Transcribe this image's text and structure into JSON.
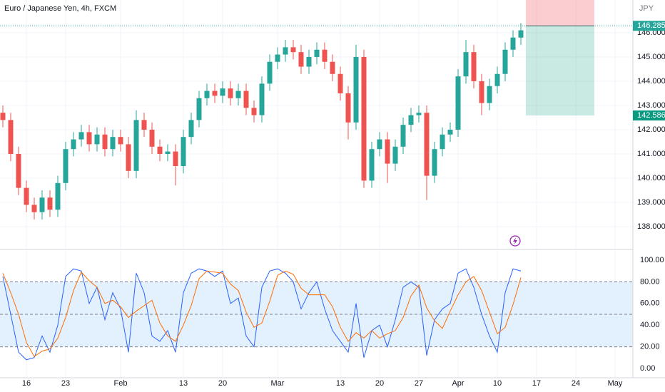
{
  "chart_data": {
    "type": "candlestick",
    "title": "Euro / Japanese Yen, 4h, FXCM",
    "currency": "JPY",
    "categories": [
      null,
      null,
      null,
      "16",
      null,
      null,
      null,
      null,
      "23",
      null,
      null,
      null,
      null,
      null,
      null,
      "Feb",
      null,
      null,
      null,
      null,
      null,
      null,
      null,
      "13",
      null,
      null,
      null,
      null,
      "20",
      null,
      null,
      null,
      null,
      null,
      null,
      "Mar",
      null,
      null,
      null,
      null,
      null,
      null,
      null,
      "13",
      null,
      null,
      null,
      null,
      "20",
      null,
      null,
      null,
      null,
      "27",
      null,
      null,
      null,
      null,
      "Apr",
      null,
      null,
      null,
      null,
      "10",
      null,
      null,
      null,
      null,
      "17",
      null,
      null,
      null,
      null,
      "24",
      null,
      null,
      null,
      null,
      "May",
      null
    ],
    "open": [
      142.7,
      142.4,
      141.0,
      139.6,
      138.9,
      138.6,
      139.2,
      138.7,
      139.8,
      141.2,
      141.6,
      141.9,
      141.4,
      141.8,
      141.2,
      141.7,
      141.4,
      140.3,
      142.4,
      142.0,
      141.3,
      141.0,
      141.1,
      140.5,
      141.7,
      142.4,
      143.3,
      143.6,
      143.4,
      143.7,
      143.3,
      143.6,
      142.9,
      142.6,
      143.9,
      144.8,
      145.1,
      145.4,
      145.2,
      144.6,
      145.0,
      145.3,
      144.8,
      144.3,
      143.5,
      142.3,
      145.0,
      139.9,
      141.2,
      141.6,
      140.6,
      141.3,
      142.2,
      142.6,
      142.7,
      140.1,
      141.2,
      141.8,
      142.0,
      144.2,
      145.2,
      144.0,
      143.1,
      143.8,
      144.3,
      145.3,
      145.8,
      null,
      null,
      null,
      null,
      null,
      null,
      null,
      null,
      null,
      null,
      null,
      null,
      null
    ],
    "high": [
      143.0,
      142.7,
      141.3,
      139.9,
      139.2,
      139.5,
      139.5,
      140.1,
      141.5,
      141.9,
      142.2,
      142.2,
      142.1,
      142.1,
      142.0,
      142.0,
      141.7,
      142.8,
      142.7,
      142.3,
      141.6,
      141.4,
      141.4,
      142.0,
      142.7,
      143.6,
      143.9,
      143.9,
      144.0,
      144.0,
      143.9,
      143.9,
      143.2,
      144.2,
      145.1,
      145.4,
      145.7,
      145.7,
      145.5,
      145.3,
      145.6,
      145.6,
      145.1,
      144.6,
      143.8,
      145.5,
      145.3,
      141.5,
      141.9,
      141.9,
      141.6,
      142.5,
      142.9,
      143.0,
      143.0,
      141.5,
      142.1,
      142.3,
      144.5,
      145.7,
      145.5,
      144.3,
      144.1,
      144.6,
      145.6,
      146.1,
      146.4,
      null,
      null,
      null,
      null,
      null,
      null,
      null,
      null,
      null,
      null,
      null,
      null,
      null
    ],
    "low": [
      142.1,
      140.7,
      139.3,
      138.6,
      138.3,
      138.3,
      138.4,
      138.4,
      139.5,
      140.9,
      141.3,
      141.1,
      141.1,
      140.9,
      140.9,
      141.1,
      140.0,
      140.0,
      141.7,
      141.0,
      140.7,
      140.7,
      139.7,
      140.2,
      141.4,
      142.1,
      143.0,
      143.1,
      143.1,
      143.0,
      143.0,
      142.6,
      142.3,
      142.3,
      143.6,
      144.5,
      144.8,
      144.9,
      144.3,
      144.3,
      144.7,
      144.5,
      144.0,
      143.2,
      141.6,
      142.0,
      139.6,
      139.6,
      140.9,
      139.8,
      140.3,
      141.0,
      141.9,
      142.3,
      139.1,
      139.8,
      140.9,
      141.5,
      141.7,
      143.9,
      143.7,
      142.6,
      142.8,
      143.5,
      144.0,
      145.0,
      145.5,
      null,
      null,
      null,
      null,
      null,
      null,
      null,
      null,
      null,
      null,
      null,
      null,
      null
    ],
    "close": [
      142.4,
      141.0,
      139.6,
      138.9,
      138.6,
      139.2,
      138.7,
      139.8,
      141.2,
      141.6,
      141.9,
      141.4,
      141.8,
      141.2,
      141.7,
      141.4,
      140.3,
      142.4,
      142.0,
      141.3,
      141.0,
      141.1,
      140.5,
      141.7,
      142.4,
      143.3,
      143.6,
      143.4,
      143.7,
      143.3,
      143.6,
      142.9,
      142.6,
      143.9,
      144.8,
      145.1,
      145.4,
      145.2,
      144.6,
      145.0,
      145.3,
      144.8,
      144.3,
      143.5,
      142.3,
      145.0,
      139.9,
      141.2,
      141.6,
      140.6,
      141.3,
      142.2,
      142.6,
      142.7,
      140.1,
      141.2,
      141.8,
      142.0,
      144.2,
      145.2,
      144.0,
      143.1,
      143.8,
      144.3,
      145.3,
      145.8,
      146.1,
      null,
      null,
      null,
      null,
      null,
      null,
      null,
      null,
      null,
      null,
      null,
      null,
      null
    ],
    "up_color": "#26a69a",
    "down_color": "#ef5350",
    "ylim": [
      137.06,
      147.35
    ],
    "yticks": [
      {
        "value": 138,
        "label": "138.000"
      },
      {
        "value": 139,
        "label": "139.000"
      },
      {
        "value": 140,
        "label": "140.000"
      },
      {
        "value": 141,
        "label": "141.000"
      },
      {
        "value": 142,
        "label": "142.000"
      },
      {
        "value": 143,
        "label": "143.000"
      },
      {
        "value": 144,
        "label": "144.000"
      },
      {
        "value": 145,
        "label": "145.000"
      },
      {
        "value": 146,
        "label": "146.000"
      }
    ],
    "grid": true,
    "position": {
      "entry": 146.285,
      "target": 142.586,
      "stop": 147.4,
      "entry_color": "#26a69a",
      "target_color": "#089981"
    },
    "indicator": {
      "type": "line",
      "ylim": [
        -8.6,
        108.6
      ],
      "yticks": [
        {
          "value": 0,
          "label": "0.00"
        },
        {
          "value": 20,
          "label": "20.00"
        },
        {
          "value": 40,
          "label": "40.00"
        },
        {
          "value": 60,
          "label": "60.00"
        },
        {
          "value": 80,
          "label": "80.00"
        },
        {
          "value": 100,
          "label": "100.00"
        }
      ],
      "levels": [
        20,
        50,
        80
      ],
      "band_color": "#e3f0fd",
      "series": [
        {
          "color": "#2962ff",
          "values": [
            85,
            50,
            15,
            8,
            10,
            30,
            15,
            40,
            85,
            92,
            90,
            60,
            75,
            45,
            70,
            55,
            15,
            88,
            70,
            30,
            25,
            35,
            15,
            70,
            88,
            92,
            90,
            85,
            90,
            60,
            65,
            30,
            20,
            75,
            90,
            92,
            88,
            80,
            55,
            70,
            80,
            55,
            35,
            25,
            15,
            60,
            10,
            35,
            40,
            20,
            45,
            75,
            80,
            75,
            12,
            45,
            55,
            60,
            88,
            92,
            75,
            50,
            30,
            15,
            70,
            92,
            90
          ]
        },
        {
          "color": "#ff6d00",
          "values": [
            88,
            70,
            50,
            24,
            11,
            16,
            18,
            28,
            47,
            72,
            89,
            81,
            75,
            60,
            63,
            57,
            47,
            53,
            58,
            63,
            42,
            30,
            25,
            40,
            58,
            83,
            90,
            89,
            88,
            78,
            72,
            52,
            38,
            42,
            62,
            86,
            90,
            87,
            74,
            68,
            68,
            68,
            57,
            38,
            25,
            33,
            28,
            35,
            28,
            32,
            35,
            47,
            67,
            77,
            56,
            44,
            37,
            53,
            68,
            80,
            85,
            72,
            52,
            32,
            38,
            59,
            84
          ]
        }
      ]
    }
  }
}
